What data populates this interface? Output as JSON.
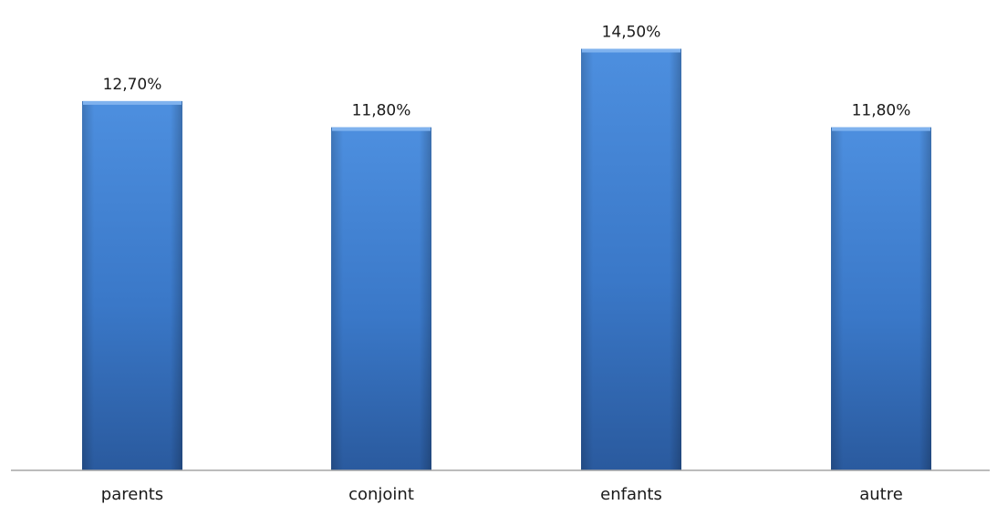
{
  "chart_data": {
    "type": "bar",
    "categories": [
      "parents",
      "conjoint",
      "enfants",
      "autre"
    ],
    "values": [
      12.7,
      11.8,
      14.5,
      11.8
    ],
    "data_labels": [
      "12,70%",
      "11,80%",
      "14,50%",
      "11,80%"
    ],
    "title": "",
    "xlabel": "",
    "ylabel": "",
    "ylim": [
      0,
      15.3
    ],
    "grid": false,
    "legend": "none",
    "colors": {
      "bar_top": "#4d8fdf",
      "bar_mid": "#3a78c8",
      "bar_bottom": "#2a5a9e",
      "bar_edge_light": "#7fb2ee",
      "axis": "#a6a6a6"
    }
  }
}
